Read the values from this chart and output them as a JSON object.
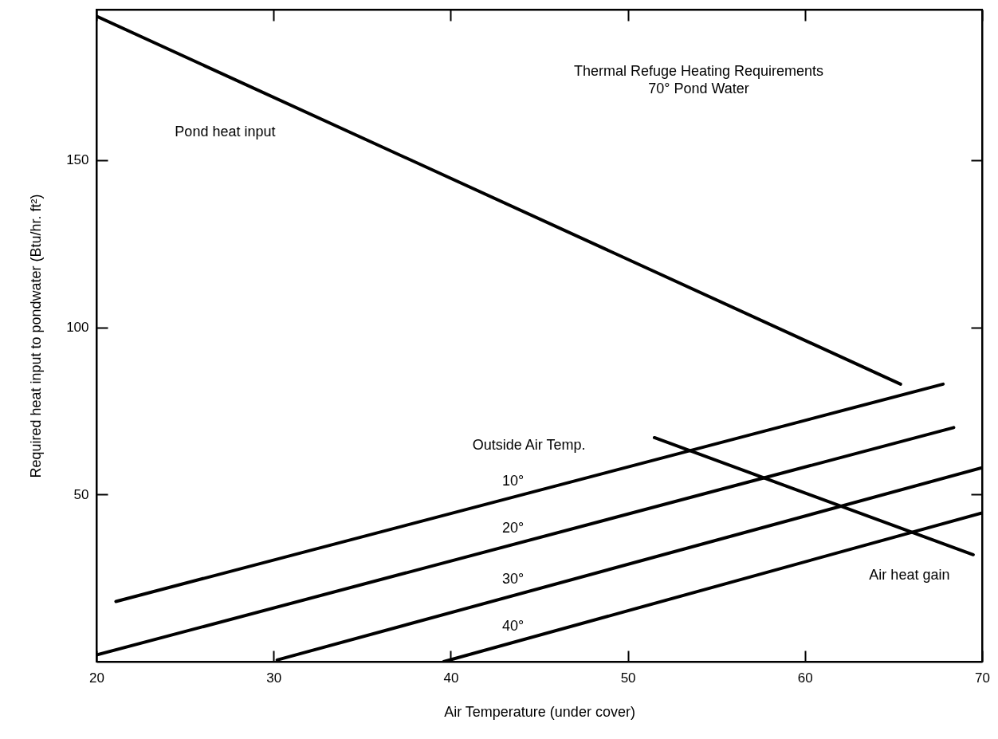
{
  "chart_data": {
    "type": "line",
    "title": "Thermal Refuge Heating Requirements",
    "subtitle": "70° Pond Water",
    "xlabel": "Air Temperature (under cover)",
    "ylabel": "Required heat input to pondwater  (Btu/hr. ft²)",
    "xlim": [
      20,
      70
    ],
    "xticks": [
      20,
      30,
      40,
      50,
      60,
      70
    ],
    "ylim": [
      0,
      195
    ],
    "yticks": [
      50,
      100,
      150
    ],
    "annotations": [
      "Outside Air Temp."
    ],
    "series": [
      {
        "name": "Pond heat input",
        "color": "#000000",
        "x": [
          20,
          65.4
        ],
        "values": [
          193,
          83
        ]
      },
      {
        "name": "10°",
        "color": "#000000",
        "x": [
          21.1,
          67.8
        ],
        "values": [
          18,
          83
        ]
      },
      {
        "name": "20°",
        "color": "#000000",
        "x": [
          20,
          68.4
        ],
        "values": [
          2,
          70
        ]
      },
      {
        "name": "30°",
        "color": "#000000",
        "x": [
          30.2,
          70
        ],
        "values": [
          0.5,
          58
        ]
      },
      {
        "name": "40°",
        "color": "#000000",
        "x": [
          39.6,
          70
        ],
        "values": [
          0,
          44.5
        ]
      },
      {
        "name": "Air heat gain",
        "color": "#000000",
        "x": [
          51.5,
          69.5
        ],
        "values": [
          67,
          32
        ]
      }
    ],
    "grid": false,
    "legend": false,
    "marker": "none",
    "line_style": "solid"
  }
}
